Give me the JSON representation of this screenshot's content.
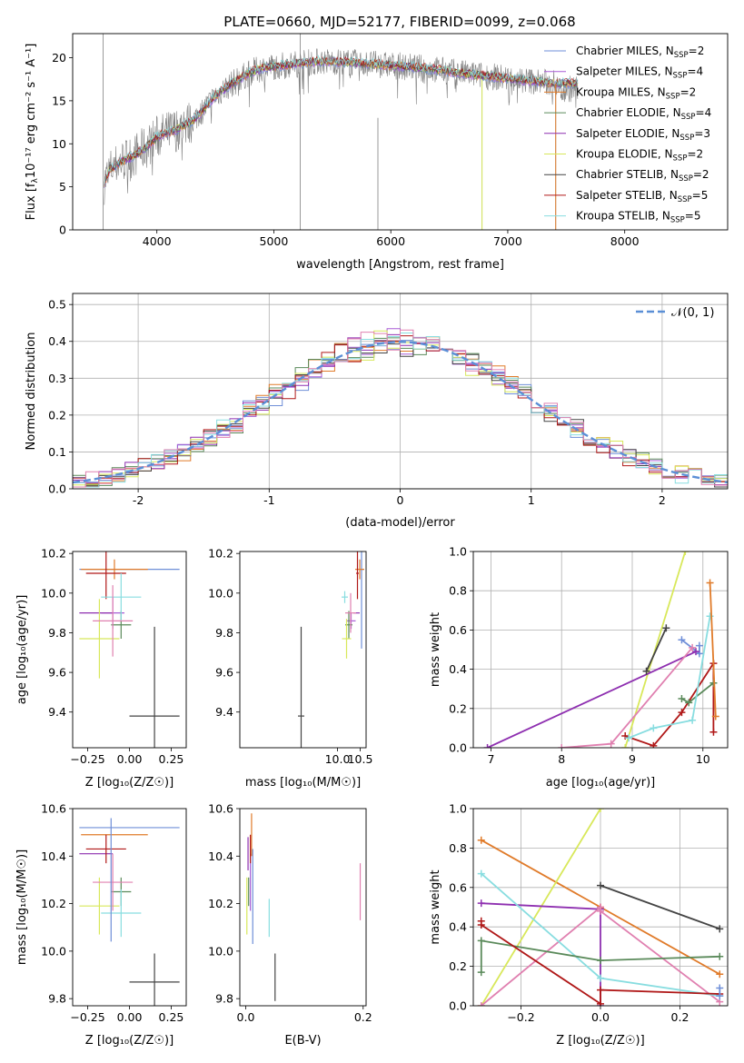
{
  "figure_title": "PLATE=0660, MJD=52177, FIBERID=0099, z=0.068",
  "colors": {
    "Chabrier MILES": "#6f8fd8",
    "Salpeter MILES": "#a85cd6",
    "Kroupa MILES": "#e07b2a",
    "Chabrier ELODIE": "#5a8a5a",
    "Salpeter ELODIE": "#8e2fb0",
    "Kroupa ELODIE": "#d8e85a",
    "Chabrier STELIB": "#444444",
    "Salpeter STELIB": "#b01818",
    "Kroupa STELIB": "#88dde0",
    "pink": "#e080b0",
    "data_gray": "#808080",
    "normal_line": "#5b8fd6"
  },
  "chart_data": [
    {
      "type": "line",
      "id": "spectrum",
      "title": "PLATE=0660, MJD=52177, FIBERID=0099, z=0.068",
      "xlabel": "wavelength [Angstrom, rest frame]",
      "ylabel_main": "Flux [f",
      "ylabel_sub": "λ",
      "ylabel_rest": "10⁻¹⁷ erg cm⁻² s⁻¹ A⁻¹]",
      "xlim": [
        3280,
        8880
      ],
      "ylim": [
        0,
        22.8
      ],
      "xticks": [
        4000,
        5000,
        6000,
        7000,
        8000
      ],
      "yticks": [
        0,
        5,
        10,
        15,
        20
      ],
      "legend_position": "top-right",
      "legend": [
        {
          "label": "Chabrier MILES, N",
          "sub": "SSP",
          "val": "=2",
          "color": "#6f8fd8"
        },
        {
          "label": "Salpeter MILES, N",
          "sub": "SSP",
          "val": "=4",
          "color": "#a85cd6"
        },
        {
          "label": "Kroupa MILES, N",
          "sub": "SSP",
          "val": "=2",
          "color": "#e07b2a"
        },
        {
          "label": "Chabrier ELODIE, N",
          "sub": "SSP",
          "val": "=4",
          "color": "#5a8a5a"
        },
        {
          "label": "Salpeter ELODIE, N",
          "sub": "SSP",
          "val": "=3",
          "color": "#8e2fb0"
        },
        {
          "label": "Kroupa ELODIE, N",
          "sub": "SSP",
          "val": "=2",
          "color": "#d8e85a"
        },
        {
          "label": "Chabrier STELIB, N",
          "sub": "SSP",
          "val": "=2",
          "color": "#444444"
        },
        {
          "label": "Salpeter STELIB, N",
          "sub": "SSP",
          "val": "=5",
          "color": "#b01818"
        },
        {
          "label": "Kroupa STELIB, N",
          "sub": "SSP",
          "val": "=5",
          "color": "#88dde0"
        }
      ],
      "continuum": {
        "x": [
          3550,
          3600,
          3700,
          3800,
          3900,
          4000,
          4100,
          4200,
          4300,
          4400,
          4500,
          4600,
          4700,
          4800,
          4900,
          5000,
          5200,
          5400,
          5600,
          5800,
          6000,
          6200,
          6400,
          6600,
          6800,
          7000,
          7200,
          7400
        ],
        "y": [
          5.5,
          7.0,
          8.0,
          8.6,
          9.5,
          10.8,
          11.3,
          11.9,
          12.6,
          14.0,
          15.6,
          16.6,
          17.5,
          18.3,
          18.8,
          19.0,
          19.3,
          19.6,
          19.5,
          19.3,
          19.1,
          18.9,
          18.6,
          18.2,
          17.9,
          17.6,
          17.3,
          17.0
        ]
      },
      "data_spikes": [
        {
          "x": [
            3540,
            3540
          ],
          "y": [
            0,
            22.8
          ]
        },
        {
          "x": [
            5225,
            5225
          ],
          "y": [
            0,
            22.8
          ]
        },
        {
          "x": [
            5890,
            5890
          ],
          "y": [
            0,
            13
          ]
        },
        {
          "x": [
            6780,
            6780
          ],
          "y": [
            0,
            17.5
          ]
        },
        {
          "x": [
            7410,
            7410
          ],
          "y": [
            0,
            16.5
          ]
        }
      ],
      "model_extent": {
        "x": [
          3550,
          7600
        ],
        "tail_x": [
          7410,
          7600
        ],
        "tail_y": [
          17.2,
          16.3
        ]
      }
    },
    {
      "type": "bar",
      "id": "residual-hist",
      "xlabel": "(data-model)/error",
      "ylabel": "Normed distribution",
      "xlim": [
        -2.5,
        2.5
      ],
      "ylim": [
        0,
        0.53
      ],
      "xticks": [
        -2,
        -1,
        0,
        1,
        2
      ],
      "yticks": [
        0.0,
        0.1,
        0.2,
        0.3,
        0.4,
        0.5
      ],
      "grid": true,
      "legend_position": "top-right",
      "legend_label": "𝒩(0, 1)",
      "bin_width": 0.1,
      "series_colors": [
        "#6f8fd8",
        "#a85cd6",
        "#e07b2a",
        "#5a8a5a",
        "#8e2fb0",
        "#d8e85a",
        "#444444",
        "#b01818",
        "#88dde0",
        "#e080b0"
      ],
      "normal_mean": 0,
      "normal_sigma": 1
    },
    {
      "type": "scatter",
      "id": "age-vs-z",
      "xlabel": "Z [log₁₀(Z/Z☉)]",
      "ylabel": "age  [log₁₀(age/yr)]",
      "xlim": [
        -0.34,
        0.34
      ],
      "ylim": [
        9.22,
        10.21
      ],
      "xticks": [
        -0.25,
        0.0,
        0.25
      ],
      "xticklabels": [
        "−0.25",
        "0.00",
        "0.25"
      ],
      "yticks": [
        9.4,
        9.6,
        9.8,
        10.0,
        10.2
      ],
      "points": [
        {
          "x": 0.0,
          "y": 10.12,
          "xerr": 0.3,
          "yerr": 0.0,
          "color": "#6f8fd8"
        },
        {
          "x": -0.1,
          "y": 9.9,
          "xerr": 0.07,
          "yerr": 0.08,
          "color": "#a85cd6"
        },
        {
          "x": -0.09,
          "y": 10.12,
          "xerr": 0.2,
          "yerr": 0.05,
          "color": "#e07b2a"
        },
        {
          "x": -0.05,
          "y": 9.84,
          "xerr": 0.06,
          "yerr": 0.07,
          "color": "#5a8a5a"
        },
        {
          "x": -0.2,
          "y": 9.9,
          "xerr": 0.1,
          "yerr": 0.0,
          "color": "#8e2fb0"
        },
        {
          "x": -0.18,
          "y": 9.77,
          "xerr": 0.12,
          "yerr": 0.2,
          "color": "#d8e85a"
        },
        {
          "x": 0.15,
          "y": 9.38,
          "xerr": 0.15,
          "yerr": 0.45,
          "color": "#444444"
        },
        {
          "x": -0.14,
          "y": 10.1,
          "xerr": 0.12,
          "yerr": 0.13,
          "color": "#b01818"
        },
        {
          "x": -0.05,
          "y": 9.98,
          "xerr": 0.12,
          "yerr": 0.12,
          "color": "#88dde0"
        },
        {
          "x": -0.1,
          "y": 9.86,
          "xerr": 0.12,
          "yerr": 0.18,
          "color": "#e080b0"
        }
      ]
    },
    {
      "type": "scatter",
      "id": "age-vs-mass",
      "xlabel": "mass [log₁₀(M/M☉)]",
      "ylabel": "",
      "xlim": [
        7.85,
        10.63
      ],
      "ylim": [
        9.22,
        10.21
      ],
      "xticks": [
        10.0,
        10.5
      ],
      "xticklabels": [
        "10.0",
        "10.5"
      ],
      "yticks": [
        9.4,
        9.6,
        9.8,
        10.0,
        10.2
      ],
      "points": [
        {
          "x": 10.53,
          "y": 10.12,
          "xerr": 0.05,
          "yerr": 0.4,
          "color": "#6f8fd8"
        },
        {
          "x": 10.3,
          "y": 9.86,
          "xerr": 0.1,
          "yerr": 0.04,
          "color": "#a85cd6"
        },
        {
          "x": 10.49,
          "y": 10.12,
          "xerr": 0.1,
          "yerr": 0.05,
          "color": "#e07b2a"
        },
        {
          "x": 10.25,
          "y": 9.84,
          "xerr": 0.08,
          "yerr": 0.07,
          "color": "#5a8a5a"
        },
        {
          "x": 10.42,
          "y": 9.9,
          "xerr": 0.07,
          "yerr": 0.0,
          "color": "#8e2fb0"
        },
        {
          "x": 10.2,
          "y": 9.77,
          "xerr": 0.1,
          "yerr": 0.1,
          "color": "#d8e85a"
        },
        {
          "x": 9.2,
          "y": 9.38,
          "xerr": 0.07,
          "yerr": 0.45,
          "color": "#444444"
        },
        {
          "x": 10.44,
          "y": 10.1,
          "xerr": 0.03,
          "yerr": 0.13,
          "color": "#b01818"
        },
        {
          "x": 10.16,
          "y": 9.98,
          "xerr": 0.07,
          "yerr": 0.03,
          "color": "#88dde0"
        },
        {
          "x": 10.29,
          "y": 9.9,
          "xerr": 0.12,
          "yerr": 0.1,
          "color": "#e080b0"
        }
      ]
    },
    {
      "type": "line",
      "id": "weight-vs-age",
      "xlabel": "age  [log₁₀(age/yr)]",
      "ylabel": "mass weight",
      "xlim": [
        6.75,
        10.35
      ],
      "ylim": [
        0,
        1.0
      ],
      "xticks": [
        7,
        8,
        9,
        10
      ],
      "yticks": [
        0.0,
        0.2,
        0.4,
        0.6,
        0.8,
        1.0
      ],
      "grid": true,
      "series": [
        {
          "color": "#6f8fd8",
          "x": [
            9.7,
            9.95,
            9.95
          ],
          "y": [
            0.55,
            0.48,
            0.52
          ]
        },
        {
          "color": "#d8e85a",
          "x": [
            8.9,
            9.75
          ],
          "y": [
            0.0,
            1.0
          ]
        },
        {
          "color": "#8e2fb0",
          "x": [
            6.95,
            9.9
          ],
          "y": [
            0.0,
            0.49
          ]
        },
        {
          "color": "#e080b0",
          "x": [
            8.0,
            8.7,
            9.85
          ],
          "y": [
            0.0,
            0.02,
            0.51
          ]
        },
        {
          "color": "#444444",
          "x": [
            9.2,
            9.48
          ],
          "y": [
            0.39,
            0.61
          ]
        },
        {
          "color": "#b01818",
          "x": [
            8.9,
            9.3,
            9.7,
            10.15,
            10.15
          ],
          "y": [
            0.06,
            0.01,
            0.18,
            0.43,
            0.08
          ]
        },
        {
          "color": "#5a8a5a",
          "x": [
            9.7,
            9.8,
            10.15
          ],
          "y": [
            0.25,
            0.23,
            0.33
          ]
        },
        {
          "color": "#88dde0",
          "x": [
            8.95,
            9.3,
            9.85,
            10.1
          ],
          "y": [
            0.05,
            0.1,
            0.14,
            0.67
          ]
        },
        {
          "color": "#e07b2a",
          "x": [
            10.1,
            10.18
          ],
          "y": [
            0.84,
            0.16
          ]
        }
      ]
    },
    {
      "type": "scatter",
      "id": "mass-vs-z",
      "xlabel": "Z [log₁₀(Z/Z☉)]",
      "ylabel": "mass [log₁₀(M/M☉)]",
      "xlim": [
        -0.34,
        0.34
      ],
      "ylim": [
        9.77,
        10.6
      ],
      "xticks": [
        -0.25,
        0.0,
        0.25
      ],
      "xticklabels": [
        "−0.25",
        "0.00",
        "0.25"
      ],
      "yticks": [
        9.8,
        10.0,
        10.2,
        10.4,
        10.6
      ],
      "points": [
        {
          "x": 0.0,
          "y": 10.52,
          "xerr": 0.3,
          "yerr": 0.0,
          "color": "#6f8fd8"
        },
        {
          "x": -0.1,
          "y": 10.29,
          "xerr": 0.0,
          "yerr": 0.0,
          "color": "#a85cd6"
        },
        {
          "x": -0.09,
          "y": 10.49,
          "xerr": 0.2,
          "yerr": 0.0,
          "color": "#e07b2a"
        },
        {
          "x": -0.05,
          "y": 10.25,
          "xerr": 0.06,
          "yerr": 0.06,
          "color": "#5a8a5a"
        },
        {
          "x": -0.2,
          "y": 10.41,
          "xerr": 0.1,
          "yerr": 0.0,
          "color": "#8e2fb0"
        },
        {
          "x": -0.18,
          "y": 10.19,
          "xerr": 0.12,
          "yerr": 0.12,
          "color": "#d8e85a"
        },
        {
          "x": 0.15,
          "y": 9.87,
          "xerr": 0.15,
          "yerr": 0.12,
          "color": "#444444"
        },
        {
          "x": -0.14,
          "y": 10.43,
          "xerr": 0.12,
          "yerr": 0.06,
          "color": "#b01818"
        },
        {
          "x": -0.05,
          "y": 10.16,
          "xerr": 0.12,
          "yerr": 0.1,
          "color": "#88dde0"
        },
        {
          "x": -0.1,
          "y": 10.29,
          "xerr": 0.12,
          "yerr": 0.12,
          "color": "#e080b0"
        },
        {
          "x": -0.11,
          "y": 10.3,
          "xerr": 0.0,
          "yerr": 0.26,
          "color": "#6f8fd8"
        }
      ]
    },
    {
      "type": "scatter",
      "id": "mass-vs-ebv",
      "xlabel": "E(B-V)",
      "ylabel": "",
      "xlim": [
        -0.01,
        0.205
      ],
      "ylim": [
        9.77,
        10.6
      ],
      "xticks": [
        0.0,
        0.2
      ],
      "xticklabels": [
        "0.0",
        "0.2"
      ],
      "yticks": [
        9.8,
        10.0,
        10.2,
        10.4,
        10.6
      ],
      "points": [
        {
          "x": 0.012,
          "y": 10.23,
          "xerr": 0.0,
          "yerr": 0.2,
          "color": "#6f8fd8"
        },
        {
          "x": 0.008,
          "y": 10.29,
          "xerr": 0.0,
          "yerr": 0.12,
          "color": "#a85cd6"
        },
        {
          "x": 0.01,
          "y": 10.49,
          "xerr": 0.0,
          "yerr": 0.09,
          "color": "#e07b2a"
        },
        {
          "x": 0.005,
          "y": 10.25,
          "xerr": 0.0,
          "yerr": 0.06,
          "color": "#5a8a5a"
        },
        {
          "x": 0.004,
          "y": 10.41,
          "xerr": 0.0,
          "yerr": 0.07,
          "color": "#8e2fb0"
        },
        {
          "x": 0.002,
          "y": 10.19,
          "xerr": 0.0,
          "yerr": 0.12,
          "color": "#d8e85a"
        },
        {
          "x": 0.05,
          "y": 9.89,
          "xerr": 0.0,
          "yerr": 0.1,
          "color": "#444444"
        },
        {
          "x": 0.008,
          "y": 10.43,
          "xerr": 0.0,
          "yerr": 0.06,
          "color": "#b01818"
        },
        {
          "x": 0.04,
          "y": 10.14,
          "xerr": 0.0,
          "yerr": 0.08,
          "color": "#88dde0"
        },
        {
          "x": 0.195,
          "y": 10.25,
          "xerr": 0.0,
          "yerr": 0.12,
          "color": "#e080b0"
        }
      ]
    },
    {
      "type": "line",
      "id": "weight-vs-z",
      "xlabel": "Z [log₁₀(Z/Z☉)]",
      "ylabel": "mass weight",
      "xlim": [
        -0.32,
        0.32
      ],
      "ylim": [
        0,
        1.0
      ],
      "xticks": [
        -0.2,
        0.0,
        0.2
      ],
      "xticklabels": [
        "−0.2",
        "0.0",
        "0.2"
      ],
      "yticks": [
        0.0,
        0.2,
        0.4,
        0.6,
        0.8,
        1.0
      ],
      "grid": true,
      "series": [
        {
          "color": "#e07b2a",
          "x": [
            -0.3,
            0.0,
            0.3
          ],
          "y": [
            0.84,
            0.5,
            0.16
          ]
        },
        {
          "color": "#d8e85a",
          "x": [
            -0.3,
            0.0
          ],
          "y": [
            0.0,
            1.0
          ]
        },
        {
          "color": "#444444",
          "x": [
            0.0,
            0.3
          ],
          "y": [
            0.61,
            0.39
          ]
        },
        {
          "color": "#8e2fb0",
          "x": [
            -0.3,
            0.0,
            0.0
          ],
          "y": [
            0.52,
            0.49,
            0.0
          ]
        },
        {
          "color": "#e080b0",
          "x": [
            -0.3,
            0.0,
            0.0,
            0.3
          ],
          "y": [
            0.0,
            0.5,
            0.48,
            0.02
          ]
        },
        {
          "color": "#88dde0",
          "x": [
            -0.3,
            0.0,
            0.3
          ],
          "y": [
            0.67,
            0.14,
            0.05
          ]
        },
        {
          "color": "#5a8a5a",
          "x": [
            -0.3,
            -0.3,
            0.0,
            0.3
          ],
          "y": [
            0.17,
            0.33,
            0.23,
            0.25
          ]
        },
        {
          "color": "#b01818",
          "x": [
            -0.3,
            -0.3,
            0.0,
            0.0,
            0.3
          ],
          "y": [
            0.43,
            0.41,
            0.01,
            0.08,
            0.06
          ]
        },
        {
          "color": "#6f8fd8",
          "x": [
            0.3,
            0.3
          ],
          "y": [
            0.09,
            0.05
          ]
        }
      ]
    }
  ]
}
